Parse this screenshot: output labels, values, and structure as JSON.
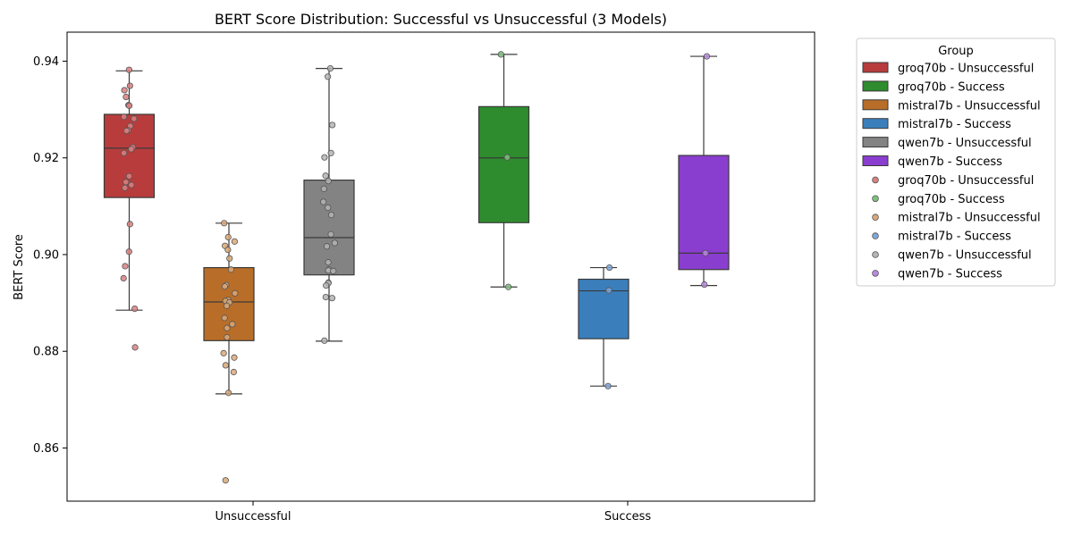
{
  "chart_data": {
    "type": "box",
    "title": "BERT Score Distribution: Successful vs Unsuccessful (3 Models)",
    "xlabel": "",
    "ylabel": "BERT Score",
    "categories": [
      "Unsuccessful",
      "Success"
    ],
    "ylim": [
      0.849,
      0.946
    ],
    "yticks": [
      0.86,
      0.88,
      0.9,
      0.92,
      0.94
    ],
    "ytick_labels": [
      "0.86",
      "0.88",
      "0.90",
      "0.92",
      "0.94"
    ],
    "legend": {
      "title": "Group",
      "placement": "outside-right",
      "box_entries": [
        {
          "label": "groq70b - Unsuccessful",
          "color": "#b83c3c"
        },
        {
          "label": "groq70b - Success",
          "color": "#2e8b2e"
        },
        {
          "label": "mistral7b - Unsuccessful",
          "color": "#b86e28"
        },
        {
          "label": "mistral7b - Success",
          "color": "#3a7fbc"
        },
        {
          "label": "qwen7b - Unsuccessful",
          "color": "#838383"
        },
        {
          "label": "qwen7b - Success",
          "color": "#8a3ecf"
        }
      ],
      "point_entries": [
        {
          "label": "groq70b - Unsuccessful",
          "color": "#d98080"
        },
        {
          "label": "groq70b - Success",
          "color": "#7fbf7f"
        },
        {
          "label": "mistral7b - Unsuccessful",
          "color": "#d9a878"
        },
        {
          "label": "mistral7b - Success",
          "color": "#7fa6d9"
        },
        {
          "label": "qwen7b - Unsuccessful",
          "color": "#b4b4b4"
        },
        {
          "label": "qwen7b - Success",
          "color": "#b88ae0"
        }
      ]
    },
    "series": [
      {
        "group": "Unsuccessful",
        "model": "groq70b",
        "color": "#b83c3c",
        "point_color": "#d98080",
        "whislo": 0.8885,
        "q1": 0.9118,
        "median": 0.922,
        "q3": 0.929,
        "whishi": 0.938,
        "points": [
          0.9382,
          0.9349,
          0.934,
          0.9326,
          0.9309,
          0.9308,
          0.9285,
          0.9281,
          0.9266,
          0.9257,
          0.9256,
          0.9222,
          0.9218,
          0.921,
          0.9162,
          0.915,
          0.9144,
          0.9138,
          0.9063,
          0.9006,
          0.8976,
          0.8951,
          0.8888,
          0.8808
        ]
      },
      {
        "group": "Unsuccessful",
        "model": "mistral7b",
        "color": "#b86e28",
        "point_color": "#d9a878",
        "whislo": 0.8712,
        "q1": 0.8822,
        "median": 0.8902,
        "q3": 0.8973,
        "whishi": 0.9065,
        "points": [
          0.9065,
          0.9036,
          0.9027,
          0.9018,
          0.901,
          0.8992,
          0.8969,
          0.8937,
          0.8934,
          0.892,
          0.8906,
          0.8904,
          0.8901,
          0.8894,
          0.8869,
          0.8856,
          0.8848,
          0.8829,
          0.8796,
          0.8787,
          0.8771,
          0.8757,
          0.8714,
          0.8533
        ]
      },
      {
        "group": "Unsuccessful",
        "model": "qwen7b",
        "color": "#838383",
        "point_color": "#b4b4b4",
        "whislo": 0.8821,
        "q1": 0.8958,
        "median": 0.9035,
        "q3": 0.9154,
        "whishi": 0.9385,
        "points": [
          0.9385,
          0.9368,
          0.9268,
          0.921,
          0.9201,
          0.9163,
          0.9152,
          0.9136,
          0.9109,
          0.9097,
          0.9082,
          0.9042,
          0.9024,
          0.9017,
          0.8984,
          0.8969,
          0.8967,
          0.8966,
          0.8942,
          0.8941,
          0.8936,
          0.8912,
          0.891,
          0.8822
        ]
      },
      {
        "group": "Success",
        "model": "groq70b",
        "color": "#2e8b2e",
        "point_color": "#7fbf7f",
        "whislo": 0.8933,
        "q1": 0.9066,
        "median": 0.92,
        "q3": 0.9306,
        "whishi": 0.9414,
        "points": [
          0.9414,
          0.9201,
          0.8933
        ]
      },
      {
        "group": "Success",
        "model": "mistral7b",
        "color": "#3a7fbc",
        "point_color": "#7fa6d9",
        "whislo": 0.8728,
        "q1": 0.8826,
        "median": 0.8925,
        "q3": 0.8949,
        "whishi": 0.8973,
        "points": [
          0.8973,
          0.8926,
          0.8728
        ]
      },
      {
        "group": "Success",
        "model": "qwen7b",
        "color": "#8a3ecf",
        "point_color": "#b88ae0",
        "whislo": 0.8936,
        "q1": 0.8969,
        "median": 0.9003,
        "q3": 0.9205,
        "whishi": 0.941,
        "points": [
          0.941,
          0.9003,
          0.8938
        ]
      }
    ],
    "grid": false
  }
}
